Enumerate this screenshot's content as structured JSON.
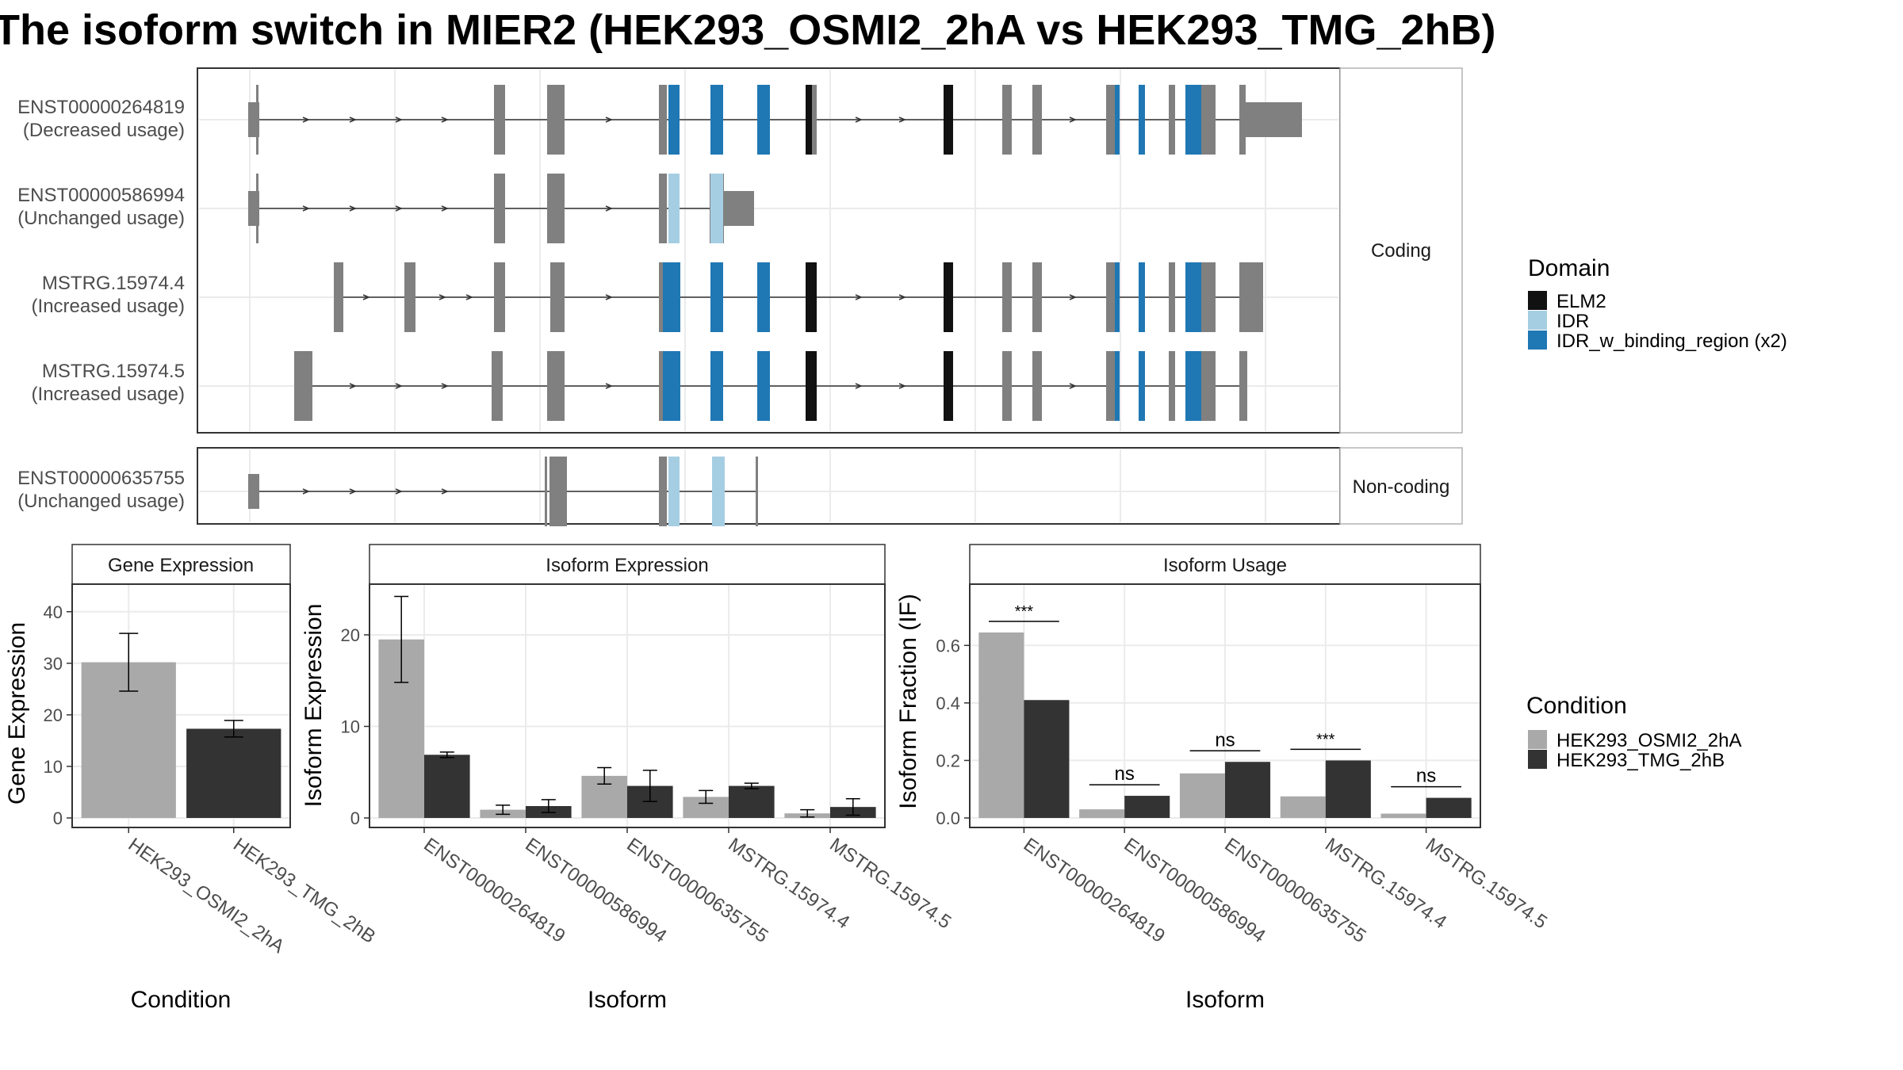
{
  "title": "The isoform switch in MIER2 (HEK293_OSMI2_2hA vs HEK293_TMG_2hB)",
  "colors": {
    "exon": "#808080",
    "elm2": "#111111",
    "idr": "#a6cee3",
    "idr_binding": "#1f78b4",
    "cond_a": "#a9a9a9",
    "cond_b": "#333333",
    "grid": "#ebebeb",
    "frame": "#333333",
    "strip_border": "#b3b3b3"
  },
  "structure": {
    "coding_strip": "Coding",
    "noncoding_strip": "Non-coding",
    "transcripts": [
      {
        "id": "ENST00000264819",
        "usage": "(Decreased usage)",
        "group": "Coding"
      },
      {
        "id": "ENST00000586994",
        "usage": "(Unchanged usage)",
        "group": "Coding"
      },
      {
        "id": "MSTRG.15974.4",
        "usage": "(Increased usage)",
        "group": "Coding"
      },
      {
        "id": "MSTRG.15974.5",
        "usage": "(Increased usage)",
        "group": "Coding"
      },
      {
        "id": "ENST00000635755",
        "usage": "(Unchanged usage)",
        "group": "Non-coding"
      }
    ]
  },
  "legend_domain": {
    "title": "Domain",
    "items": [
      {
        "label": "ELM2",
        "color": "#111111"
      },
      {
        "label": "IDR",
        "color": "#a6cee3"
      },
      {
        "label": "IDR_w_binding_region (x2)",
        "color": "#1f78b4"
      }
    ]
  },
  "legend_condition": {
    "title": "Condition",
    "items": [
      {
        "label": "HEK293_OSMI2_2hA",
        "color": "#a9a9a9"
      },
      {
        "label": "HEK293_TMG_2hB",
        "color": "#333333"
      }
    ]
  },
  "chart_data": [
    {
      "type": "bar",
      "strip": "Gene Expression",
      "xlabel": "Condition",
      "ylabel": "Gene Expression",
      "categories": [
        "HEK293_OSMI2_2hA",
        "HEK293_TMG_2hB"
      ],
      "values": [
        30.2,
        17.3
      ],
      "errors": [
        [
          24.6,
          35.8
        ],
        [
          15.7,
          18.9
        ]
      ],
      "ylim": [
        0,
        43.5
      ],
      "yticks": [
        0,
        10,
        20,
        30,
        40
      ]
    },
    {
      "type": "bar",
      "strip": "Isoform Expression",
      "xlabel": "Isoform",
      "ylabel": "Isoform Expression",
      "categories": [
        "ENST00000264819",
        "ENST00000586994",
        "ENST00000635755",
        "MSTRG.15974.4",
        "MSTRG.15974.5"
      ],
      "series": [
        {
          "name": "HEK293_OSMI2_2hA",
          "values": [
            19.5,
            0.9,
            4.6,
            2.3,
            0.5
          ],
          "errors": [
            [
              14.8,
              24.2
            ],
            [
              0.4,
              1.4
            ],
            [
              3.7,
              5.5
            ],
            [
              1.6,
              3.0
            ],
            [
              0.1,
              0.9
            ]
          ]
        },
        {
          "name": "HEK293_TMG_2hB",
          "values": [
            6.9,
            1.3,
            3.5,
            3.5,
            1.2
          ],
          "errors": [
            [
              6.6,
              7.2
            ],
            [
              0.6,
              2.0
            ],
            [
              1.8,
              5.2
            ],
            [
              3.2,
              3.8
            ],
            [
              0.3,
              2.1
            ]
          ]
        }
      ],
      "ylim": [
        0,
        24.5
      ],
      "yticks": [
        0,
        10,
        20
      ]
    },
    {
      "type": "bar",
      "strip": "Isoform Usage",
      "xlabel": "Isoform",
      "ylabel": "Isoform Fraction (IF)",
      "categories": [
        "ENST00000264819",
        "ENST00000586994",
        "ENST00000635755",
        "MSTRG.15974.4",
        "MSTRG.15974.5"
      ],
      "series": [
        {
          "name": "HEK293_OSMI2_2hA",
          "values": [
            0.645,
            0.03,
            0.155,
            0.075,
            0.015
          ]
        },
        {
          "name": "HEK293_TMG_2hB",
          "values": [
            0.41,
            0.077,
            0.195,
            0.2,
            0.07
          ]
        }
      ],
      "significance": [
        "***",
        "ns",
        "ns",
        "***",
        "ns"
      ],
      "ylim": [
        0,
        0.78
      ],
      "yticks": [
        0.0,
        0.2,
        0.4,
        0.6
      ],
      "ytick_labels": [
        "0.0",
        "0.2",
        "0.4",
        "0.6"
      ]
    }
  ]
}
